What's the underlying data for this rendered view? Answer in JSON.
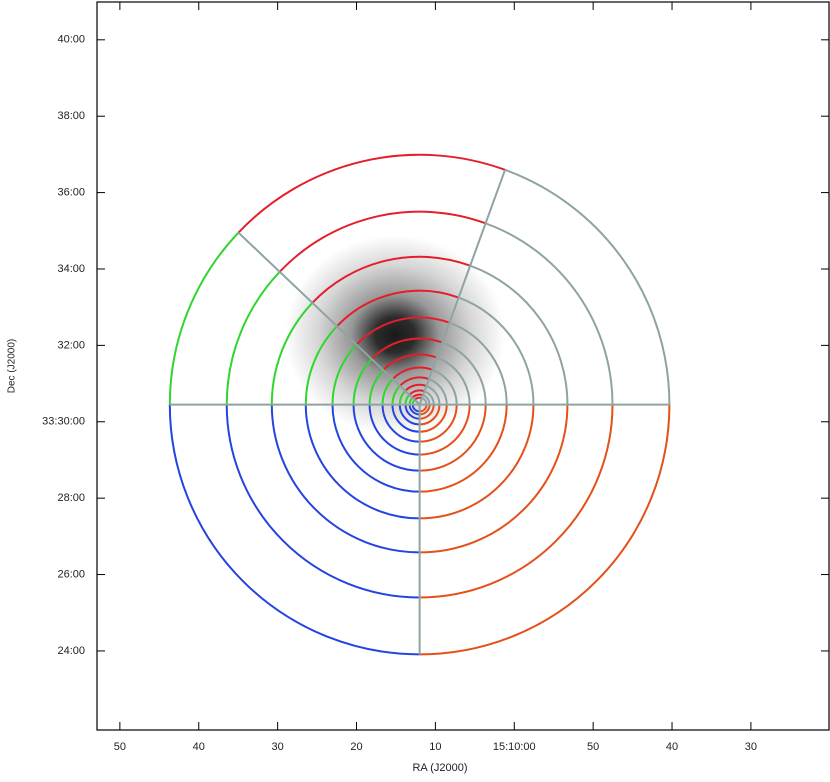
{
  "chart_data": {
    "type": "sky-image",
    "x_label": "RA (J2000)",
    "y_label": "Dec (J2000)",
    "xlim": [
      52.9,
      -39.9
    ],
    "xticks": [
      50,
      40,
      30,
      20,
      10,
      {
        "value": 0,
        "label": "15:10:00"
      },
      {
        "value": -10,
        "label": "50"
      },
      {
        "value": -20,
        "label": "40"
      },
      {
        "value": -30,
        "label": "30"
      }
    ],
    "ylim": [
      21.93,
      40.99
    ],
    "yticks": [
      {
        "value": 40,
        "label": "40:00"
      },
      {
        "value": 38,
        "label": "38:00"
      },
      {
        "value": 36,
        "label": "36:00"
      },
      {
        "value": 34,
        "label": "34:00"
      },
      {
        "value": 32,
        "label": "32:00"
      },
      {
        "value": 30,
        "label": "33:30:00"
      },
      {
        "value": 28,
        "label": "28:00"
      },
      {
        "value": 26,
        "label": "26:00"
      },
      {
        "value": 24,
        "label": "24:00"
      }
    ],
    "center": [
      12,
      30.45
    ],
    "radii": [
      6.54,
      5.05,
      3.87,
      2.98,
      2.28,
      1.73,
      1.31,
      0.97,
      0.71,
      0.52,
      0.37,
      0.26,
      0.18
    ],
    "sectors": [
      {
        "from": 0,
        "to": 70,
        "color": "#8fa3a3"
      },
      {
        "from": 70,
        "to": 136.5,
        "color": "#e41e2a"
      },
      {
        "from": 136.5,
        "to": 180,
        "color": "#2ed62e"
      },
      {
        "from": 180,
        "to": 270,
        "color": "#2444e0"
      },
      {
        "from": 270,
        "to": 360,
        "color": "#e4501a"
      }
    ]
  }
}
